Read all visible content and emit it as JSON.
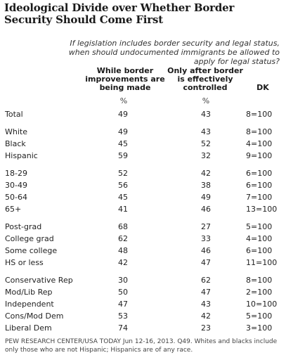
{
  "title": "Ideological Divide over Whether Border Security Should Come First",
  "question": "If legislation includes border security and legal status, when should undocumented immigrants be allowed to apply for legal status?",
  "columns": {
    "c1": "While border improvements are being made",
    "c2": "Only after border is effectively controlled",
    "c3": "DK",
    "pct": "%"
  },
  "rows": [
    {
      "label": "Total",
      "v1": "49",
      "v2": "43",
      "v3": "8=100"
    },
    {
      "label": "White",
      "v1": "49",
      "v2": "43",
      "v3": "8=100"
    },
    {
      "label": "Black",
      "v1": "45",
      "v2": "52",
      "v3": "4=100"
    },
    {
      "label": "Hispanic",
      "v1": "59",
      "v2": "32",
      "v3": "9=100"
    },
    {
      "label": "18-29",
      "v1": "52",
      "v2": "42",
      "v3": "6=100"
    },
    {
      "label": "30-49",
      "v1": "56",
      "v2": "38",
      "v3": "6=100"
    },
    {
      "label": "50-64",
      "v1": "45",
      "v2": "49",
      "v3": "7=100"
    },
    {
      "label": "65+",
      "v1": "41",
      "v2": "46",
      "v3": "13=100"
    },
    {
      "label": "Post-grad",
      "v1": "68",
      "v2": "27",
      "v3": "5=100"
    },
    {
      "label": "College grad",
      "v1": "62",
      "v2": "33",
      "v3": "4=100"
    },
    {
      "label": "Some college",
      "v1": "48",
      "v2": "46",
      "v3": "6=100"
    },
    {
      "label": "HS or less",
      "v1": "42",
      "v2": "47",
      "v3": "11=100"
    },
    {
      "label": "Conservative Rep",
      "v1": "30",
      "v2": "62",
      "v3": "8=100"
    },
    {
      "label": "Mod/Lib Rep",
      "v1": "50",
      "v2": "47",
      "v3": "2=100"
    },
    {
      "label": "Independent",
      "v1": "47",
      "v2": "43",
      "v3": "10=100"
    },
    {
      "label": "Cons/Mod Dem",
      "v1": "53",
      "v2": "42",
      "v3": "5=100"
    },
    {
      "label": "Liberal Dem",
      "v1": "74",
      "v2": "23",
      "v3": "3=100"
    }
  ],
  "note": "PEW RESEARCH CENTER/USA TODAY Jun 12-16, 2013. Q49. Whites and blacks include only those who are not Hispanic; Hispanics are of any race.",
  "chart_data": {
    "type": "table",
    "title": "Ideological Divide over Whether Border Security Should Come First",
    "categories": [
      "Total",
      "White",
      "Black",
      "Hispanic",
      "18-29",
      "30-49",
      "50-64",
      "65+",
      "Post-grad",
      "College grad",
      "Some college",
      "HS or less",
      "Conservative Rep",
      "Mod/Lib Rep",
      "Independent",
      "Cons/Mod Dem",
      "Liberal Dem"
    ],
    "series": [
      {
        "name": "While border improvements are being made",
        "values": [
          49,
          49,
          45,
          59,
          52,
          56,
          45,
          41,
          68,
          62,
          48,
          42,
          30,
          50,
          47,
          53,
          74
        ]
      },
      {
        "name": "Only after border is effectively controlled",
        "values": [
          43,
          43,
          52,
          32,
          42,
          38,
          49,
          46,
          27,
          33,
          46,
          47,
          62,
          47,
          43,
          42,
          23
        ]
      },
      {
        "name": "DK",
        "values": [
          8,
          8,
          4,
          9,
          6,
          6,
          7,
          13,
          5,
          4,
          6,
          11,
          8,
          2,
          10,
          5,
          3
        ]
      }
    ]
  }
}
